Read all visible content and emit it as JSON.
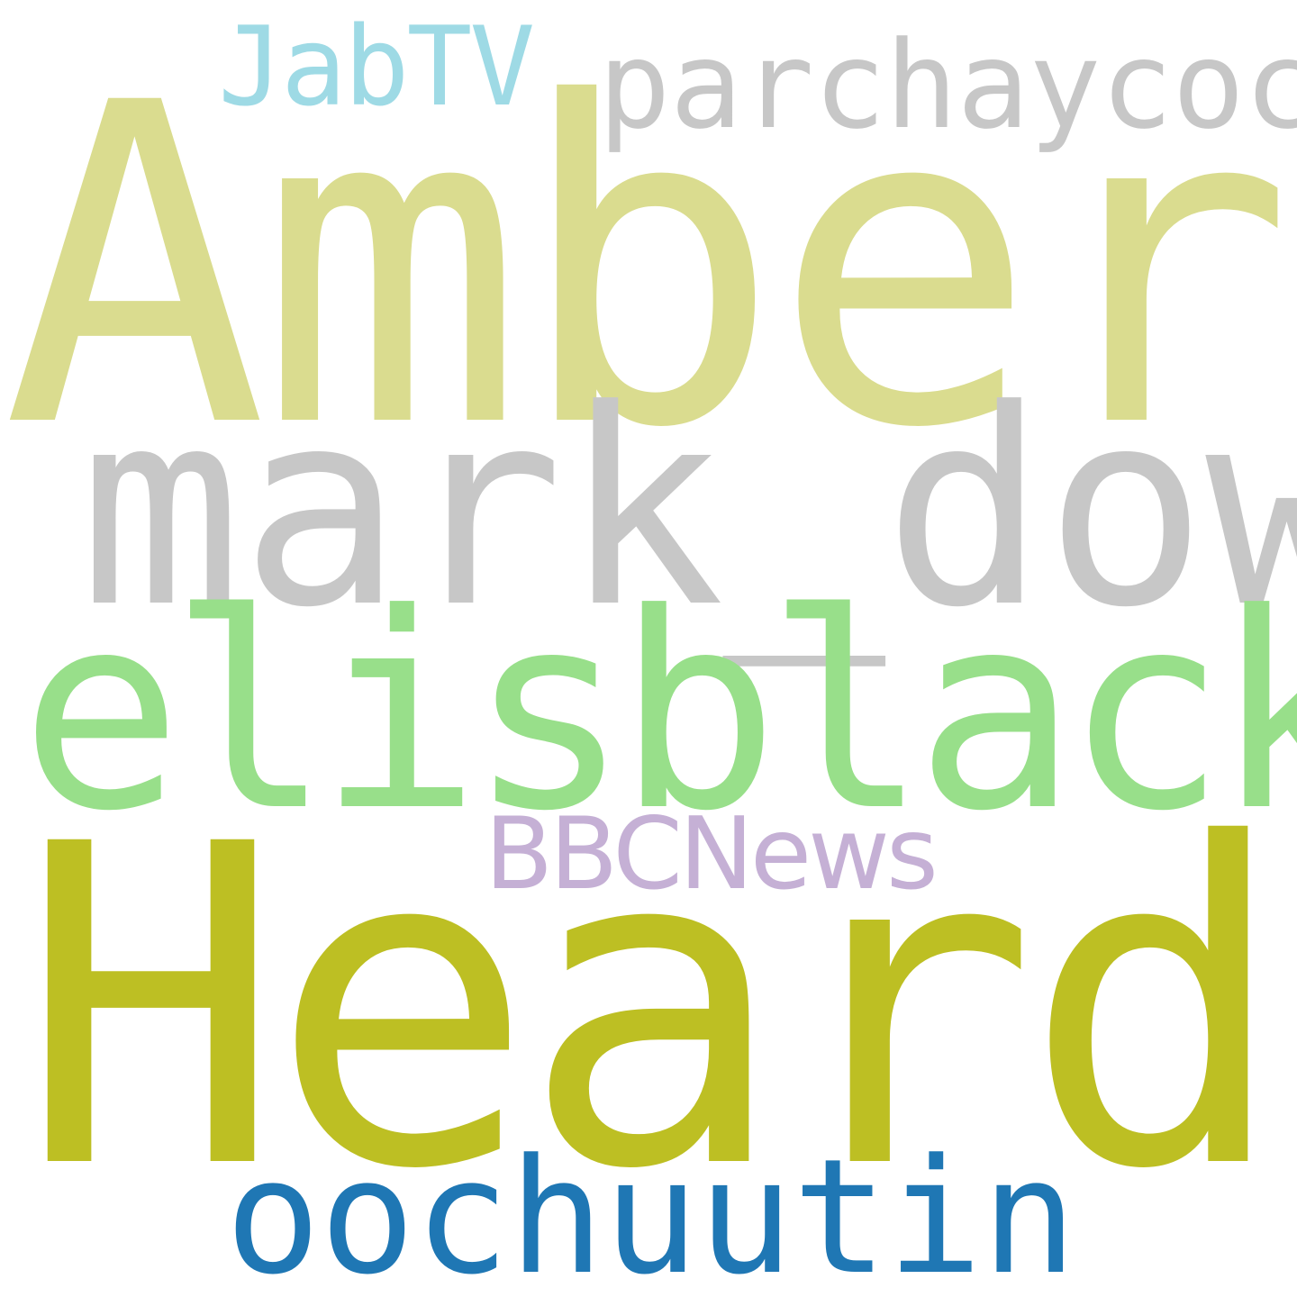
{
  "words": [
    {
      "text": "Amber",
      "color": "#dadc8f"
    },
    {
      "text": "Heard",
      "color": "#bdbf23"
    },
    {
      "text": "mark_dow",
      "color": "#c7c7c7"
    },
    {
      "text": "elisblack",
      "color": "#98df8a"
    },
    {
      "text": "oochuutin",
      "color": "#1f77b4"
    },
    {
      "text": "parchaycoco",
      "color": "#c7c7c7"
    },
    {
      "text": "JabTV",
      "color": "#9edae5"
    },
    {
      "text": "BBCNews",
      "color": "#c5b0d5"
    }
  ]
}
